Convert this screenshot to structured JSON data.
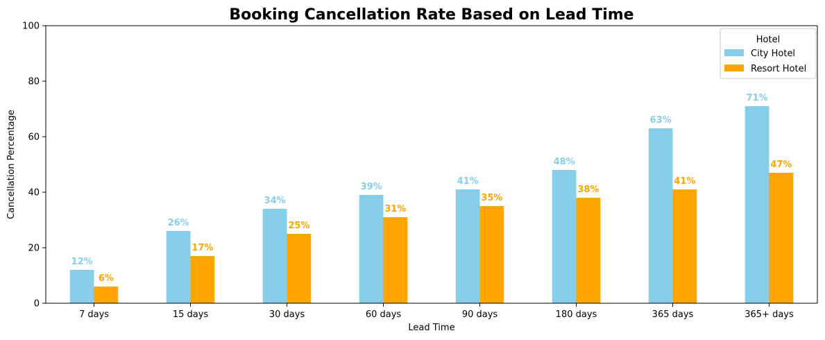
{
  "chart_data": {
    "type": "bar",
    "title": "Booking Cancellation Rate Based on Lead Time",
    "xlabel": "Lead Time",
    "ylabel": "Cancellation Percentage",
    "categories": [
      "7 days",
      "15 days",
      "30 days",
      "60 days",
      "90 days",
      "180 days",
      "365 days",
      "365+ days"
    ],
    "ylim": [
      0,
      100
    ],
    "yticks": [
      0,
      20,
      40,
      60,
      80,
      100
    ],
    "grid": false,
    "legend": {
      "title": "Hotel",
      "placement": "top-right"
    },
    "series": [
      {
        "name": "City Hotel",
        "color": "#87CEEB",
        "values": [
          12,
          26,
          34,
          39,
          41,
          48,
          63,
          71
        ],
        "labels": [
          "12%",
          "26%",
          "34%",
          "39%",
          "41%",
          "48%",
          "63%",
          "71%"
        ]
      },
      {
        "name": "Resort Hotel",
        "color": "#FFA500",
        "values": [
          6,
          17,
          25,
          31,
          35,
          38,
          41,
          47
        ],
        "labels": [
          "6%",
          "17%",
          "25%",
          "31%",
          "35%",
          "38%",
          "41%",
          "47%"
        ]
      }
    ]
  }
}
